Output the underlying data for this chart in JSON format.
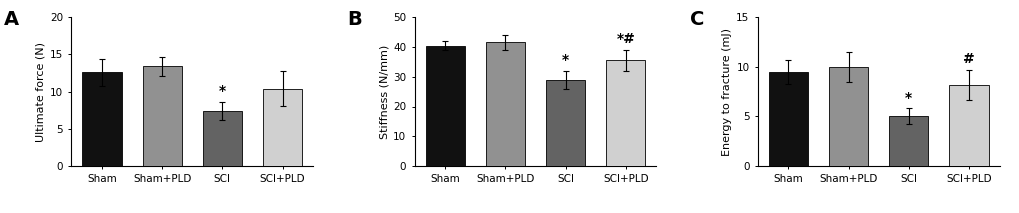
{
  "panels": [
    {
      "label": "A",
      "ylabel": "Ultimate force (N)",
      "ylim": [
        0,
        20
      ],
      "yticks": [
        0,
        5,
        10,
        15,
        20
      ],
      "categories": [
        "Sham",
        "Sham+PLD",
        "SCI",
        "SCI+PLD"
      ],
      "values": [
        12.6,
        13.4,
        7.4,
        10.4
      ],
      "errors": [
        1.8,
        1.3,
        1.2,
        2.3
      ],
      "colors": [
        "#111111",
        "#919191",
        "#636363",
        "#d0d0d0"
      ],
      "sig_labels": [
        "",
        "",
        "*",
        ""
      ]
    },
    {
      "label": "B",
      "ylabel": "Stiffness (N/mm)",
      "ylim": [
        0,
        50
      ],
      "yticks": [
        0,
        10,
        20,
        30,
        40,
        50
      ],
      "categories": [
        "Sham",
        "Sham+PLD",
        "SCI",
        "SCI+PLD"
      ],
      "values": [
        40.4,
        41.5,
        29.0,
        35.5
      ],
      "errors": [
        1.5,
        2.5,
        3.0,
        3.5
      ],
      "colors": [
        "#111111",
        "#919191",
        "#636363",
        "#d0d0d0"
      ],
      "sig_labels": [
        "",
        "",
        "*",
        "*#"
      ]
    },
    {
      "label": "C",
      "ylabel": "Energy to fracture (mJ)",
      "ylim": [
        0,
        15
      ],
      "yticks": [
        0,
        5,
        10,
        15
      ],
      "categories": [
        "Sham",
        "Sham+PLD",
        "SCI",
        "SCI+PLD"
      ],
      "values": [
        9.5,
        10.0,
        5.0,
        8.2
      ],
      "errors": [
        1.2,
        1.5,
        0.8,
        1.5
      ],
      "colors": [
        "#111111",
        "#919191",
        "#636363",
        "#d0d0d0"
      ],
      "sig_labels": [
        "",
        "",
        "*",
        "#"
      ]
    }
  ],
  "background_color": "#ffffff",
  "bar_width": 0.65,
  "tick_fontsize": 7.5,
  "ylabel_fontsize": 8.0,
  "panel_label_fontsize": 14,
  "sig_fontsize": 10
}
